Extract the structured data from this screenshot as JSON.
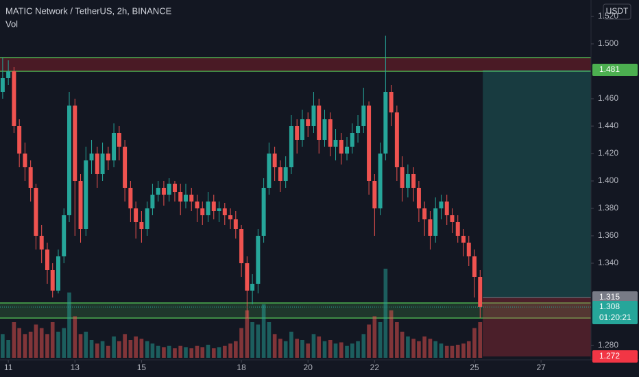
{
  "chart_data": {
    "type": "candlestick",
    "title": "MATIC Network / TetherUS, 2h, BINANCE",
    "volume_label": "Vol",
    "currency": "USDT",
    "up_color": "#26a69a",
    "down_color": "#ef5350",
    "xlim": [
      10.75,
      28.5
    ],
    "xticks": [
      11,
      13,
      15,
      18,
      20,
      22,
      25,
      27
    ],
    "ylim": [
      1.2695,
      1.532
    ],
    "yticks": [
      {
        "value": 1.28,
        "label": "1.280"
      },
      {
        "value": 1.34,
        "label": "1.340"
      },
      {
        "value": 1.36,
        "label": "1.360"
      },
      {
        "value": 1.38,
        "label": "1.380"
      },
      {
        "value": 1.4,
        "label": "1.400"
      },
      {
        "value": 1.42,
        "label": "1.420"
      },
      {
        "value": 1.44,
        "label": "1.440"
      },
      {
        "value": 1.46,
        "label": "1.460"
      },
      {
        "value": 1.5,
        "label": "1.500"
      },
      {
        "value": 1.52,
        "label": "1.520"
      }
    ],
    "x": [
      10.83,
      11,
      11.17,
      11.33,
      11.5,
      11.67,
      11.83,
      12,
      12.17,
      12.33,
      12.5,
      12.67,
      12.83,
      13,
      13.17,
      13.33,
      13.5,
      13.67,
      13.83,
      14,
      14.17,
      14.33,
      14.5,
      14.67,
      14.83,
      15,
      15.17,
      15.33,
      15.5,
      15.67,
      15.83,
      16,
      16.17,
      16.33,
      16.5,
      16.67,
      16.83,
      17,
      17.17,
      17.33,
      17.5,
      17.67,
      17.83,
      18,
      18.17,
      18.33,
      18.5,
      18.67,
      18.83,
      19,
      19.17,
      19.33,
      19.5,
      19.67,
      19.83,
      20,
      20.17,
      20.33,
      20.5,
      20.67,
      20.83,
      21,
      21.17,
      21.33,
      21.5,
      21.67,
      21.83,
      22,
      22.17,
      22.33,
      22.5,
      22.67,
      22.83,
      23,
      23.17,
      23.33,
      23.5,
      23.67,
      23.83,
      24,
      24.17,
      24.33,
      24.5,
      24.67,
      24.83,
      25,
      25.17
    ],
    "open": [
      1.465,
      1.475,
      1.48,
      1.44,
      1.42,
      1.41,
      1.395,
      1.36,
      1.35,
      1.335,
      1.32,
      1.345,
      1.375,
      1.455,
      1.4,
      1.365,
      1.415,
      1.42,
      1.405,
      1.42,
      1.415,
      1.435,
      1.425,
      1.395,
      1.38,
      1.37,
      1.365,
      1.38,
      1.39,
      1.395,
      1.39,
      1.398,
      1.392,
      1.385,
      1.39,
      1.385,
      1.38,
      1.375,
      1.385,
      1.378,
      1.38,
      1.375,
      1.372,
      1.365,
      1.34,
      1.32,
      1.325,
      1.36,
      1.395,
      1.42,
      1.41,
      1.4,
      1.41,
      1.44,
      1.43,
      1.445,
      1.44,
      1.455,
      1.43,
      1.445,
      1.425,
      1.43,
      1.42,
      1.425,
      1.435,
      1.44,
      1.455,
      1.4,
      1.38,
      1.42,
      1.465,
      1.45,
      1.41,
      1.395,
      1.405,
      1.395,
      1.38,
      1.372,
      1.36,
      1.38,
      1.385,
      1.375,
      1.37,
      1.36,
      1.355,
      1.345,
      1.33
    ],
    "high": [
      1.49,
      1.488,
      1.483,
      1.445,
      1.428,
      1.415,
      1.398,
      1.368,
      1.355,
      1.34,
      1.35,
      1.38,
      1.465,
      1.46,
      1.405,
      1.425,
      1.43,
      1.425,
      1.428,
      1.425,
      1.442,
      1.44,
      1.43,
      1.4,
      1.385,
      1.378,
      1.385,
      1.398,
      1.4,
      1.4,
      1.402,
      1.4,
      1.398,
      1.398,
      1.395,
      1.39,
      1.385,
      1.392,
      1.39,
      1.385,
      1.384,
      1.38,
      1.378,
      1.368,
      1.345,
      1.332,
      1.365,
      1.402,
      1.428,
      1.425,
      1.415,
      1.418,
      1.448,
      1.445,
      1.452,
      1.45,
      1.465,
      1.46,
      1.452,
      1.45,
      1.438,
      1.435,
      1.432,
      1.442,
      1.448,
      1.468,
      1.458,
      1.405,
      1.428,
      1.506,
      1.47,
      1.455,
      1.418,
      1.412,
      1.41,
      1.4,
      1.385,
      1.378,
      1.388,
      1.39,
      1.39,
      1.38,
      1.375,
      1.365,
      1.36,
      1.35,
      1.335
    ],
    "low": [
      1.46,
      1.47,
      1.435,
      1.41,
      1.4,
      1.385,
      1.35,
      1.34,
      1.325,
      1.315,
      1.318,
      1.34,
      1.37,
      1.36,
      1.355,
      1.36,
      1.405,
      1.395,
      1.4,
      1.408,
      1.41,
      1.415,
      1.385,
      1.37,
      1.358,
      1.355,
      1.36,
      1.375,
      1.385,
      1.382,
      1.385,
      1.385,
      1.375,
      1.38,
      1.378,
      1.37,
      1.368,
      1.37,
      1.372,
      1.37,
      1.368,
      1.365,
      1.358,
      1.33,
      1.3,
      1.31,
      1.318,
      1.355,
      1.39,
      1.4,
      1.392,
      1.395,
      1.405,
      1.42,
      1.425,
      1.432,
      1.435,
      1.42,
      1.425,
      1.418,
      1.415,
      1.412,
      1.415,
      1.42,
      1.428,
      1.435,
      1.39,
      1.36,
      1.375,
      1.415,
      1.44,
      1.4,
      1.385,
      1.388,
      1.385,
      1.37,
      1.36,
      1.35,
      1.355,
      1.372,
      1.368,
      1.362,
      1.355,
      1.345,
      1.338,
      1.315,
      1.3
    ],
    "close": [
      1.475,
      1.48,
      1.44,
      1.42,
      1.41,
      1.395,
      1.36,
      1.35,
      1.335,
      1.32,
      1.345,
      1.375,
      1.455,
      1.4,
      1.365,
      1.415,
      1.42,
      1.405,
      1.42,
      1.415,
      1.435,
      1.425,
      1.395,
      1.38,
      1.37,
      1.365,
      1.38,
      1.39,
      1.395,
      1.39,
      1.398,
      1.392,
      1.385,
      1.39,
      1.385,
      1.38,
      1.375,
      1.385,
      1.378,
      1.38,
      1.375,
      1.372,
      1.365,
      1.34,
      1.32,
      1.325,
      1.36,
      1.395,
      1.42,
      1.41,
      1.4,
      1.41,
      1.44,
      1.43,
      1.445,
      1.44,
      1.455,
      1.43,
      1.445,
      1.425,
      1.43,
      1.42,
      1.425,
      1.435,
      1.44,
      1.455,
      1.4,
      1.38,
      1.42,
      1.465,
      1.45,
      1.41,
      1.395,
      1.405,
      1.395,
      1.38,
      1.372,
      1.36,
      1.38,
      1.385,
      1.375,
      1.37,
      1.36,
      1.355,
      1.345,
      1.33,
      1.308
    ],
    "volume": [
      20,
      15,
      30,
      25,
      20,
      22,
      28,
      25,
      20,
      30,
      22,
      25,
      55,
      35,
      20,
      22,
      15,
      12,
      14,
      10,
      18,
      14,
      20,
      15,
      18,
      16,
      14,
      12,
      10,
      9,
      10,
      8,
      10,
      9,
      8,
      10,
      9,
      11,
      8,
      9,
      10,
      12,
      14,
      25,
      40,
      30,
      28,
      45,
      30,
      20,
      16,
      14,
      22,
      16,
      15,
      12,
      20,
      18,
      14,
      15,
      12,
      13,
      10,
      12,
      14,
      20,
      28,
      35,
      30,
      75,
      40,
      30,
      22,
      18,
      16,
      14,
      18,
      16,
      14,
      12,
      10,
      10,
      11,
      12,
      14,
      25,
      30
    ],
    "zones": [
      {
        "from": 1.48,
        "to": 1.49,
        "fill": "rgba(120,30,40,0.55)",
        "line": "#4caf50"
      },
      {
        "from": 1.3,
        "to": 1.311,
        "fill": "rgba(76,175,80,0.22)",
        "line": "#4caf50"
      }
    ],
    "position": {
      "start": 25.25,
      "end": 28.5,
      "target": 1.481,
      "entry": 1.315,
      "stop": 1.272,
      "target_color": "#4caf50",
      "entry_color": "#787b86",
      "stop_color": "#f23645"
    },
    "last_price": {
      "value": 1.308,
      "countdown": "01:20:21",
      "color": "#26a69a"
    }
  }
}
